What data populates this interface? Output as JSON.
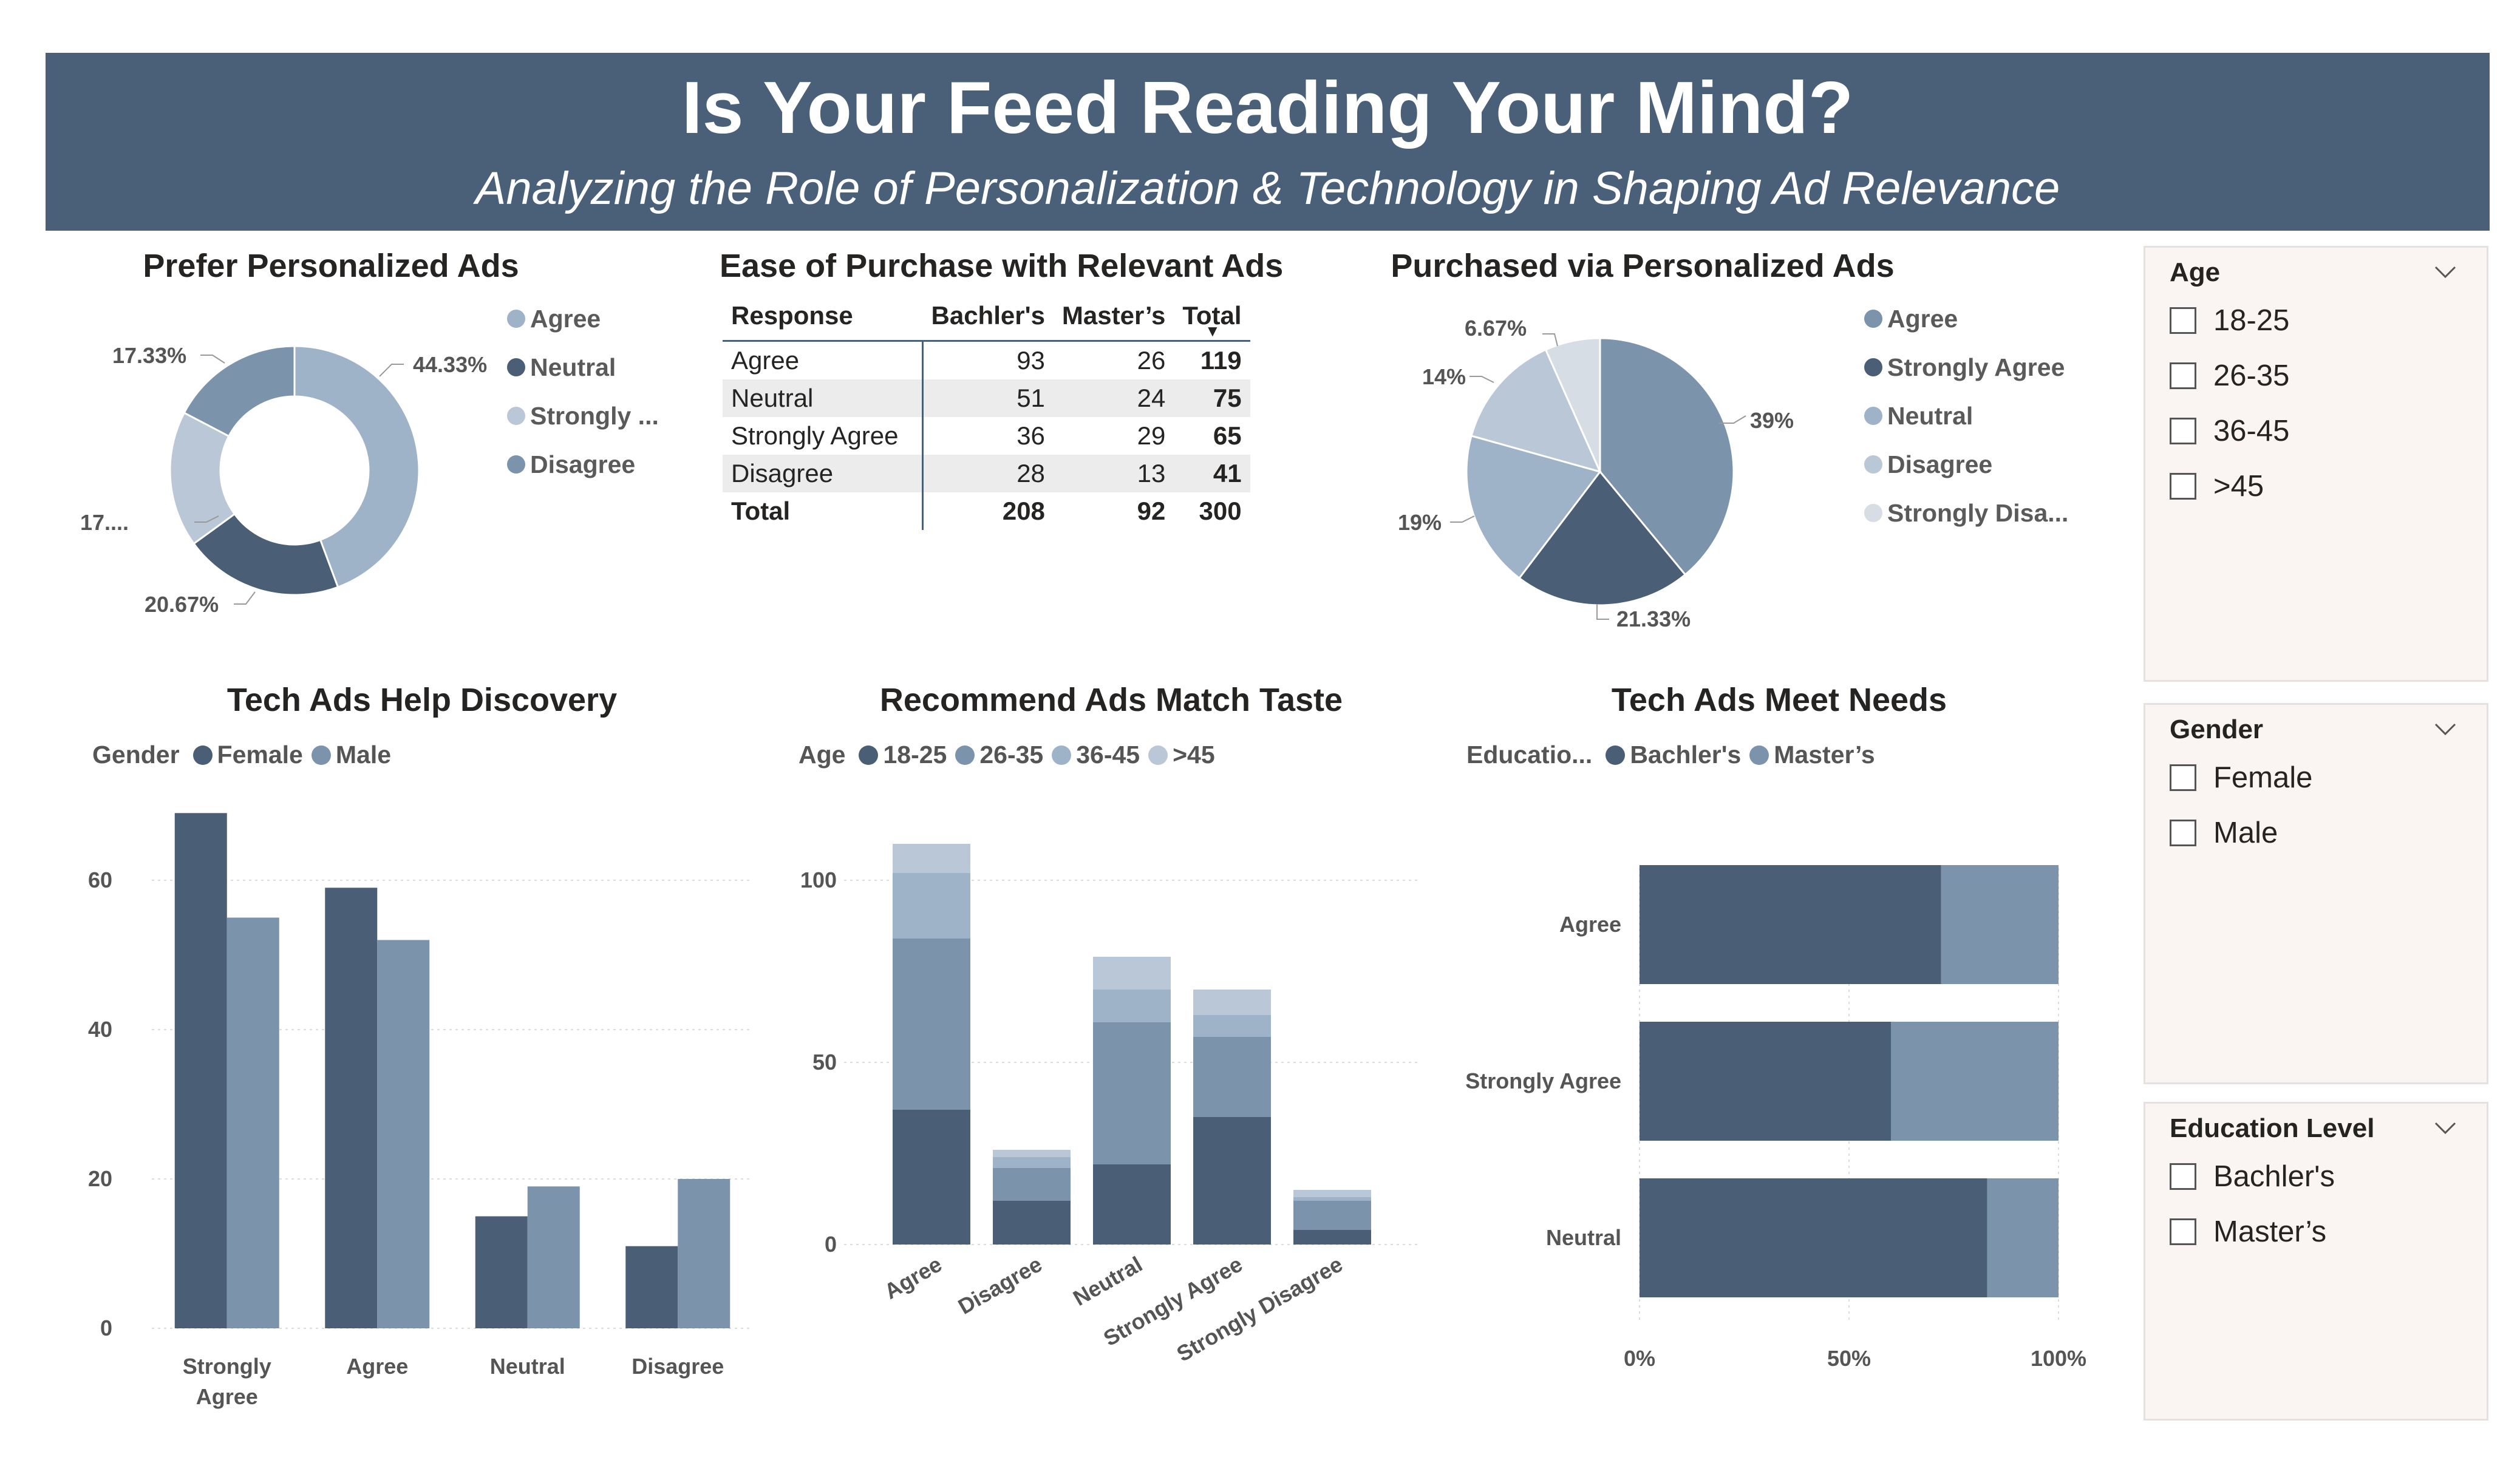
{
  "header": {
    "title": "Is Your Feed Reading Your Mind?",
    "subtitle": "Analyzing the Role of Personalization & Technology in Shaping Ad Relevance"
  },
  "colors": {
    "banner": "#4a6078",
    "dark": "#4a5f75",
    "mid": "#7b93ab",
    "light": "#9fb3c8",
    "lighter": "#bac7d7",
    "palest": "#d6dde5"
  },
  "prefer": {
    "title": "Prefer Personalized Ads",
    "legend": [
      "Agree",
      "Neutral",
      "Strongly ...",
      "Disagree"
    ],
    "labels": {
      "agree": "44.33%",
      "neutral": "20.67%",
      "strongly": "17....",
      "disagree": "17.33%"
    }
  },
  "ease": {
    "title": "Ease of Purchase with Relevant Ads",
    "columns": [
      "Response",
      "Bachler's",
      "Master’s",
      "Total"
    ],
    "rows": [
      [
        "Agree",
        "93",
        "26",
        "119"
      ],
      [
        "Neutral",
        "51",
        "24",
        "75"
      ],
      [
        "Strongly Agree",
        "36",
        "29",
        "65"
      ],
      [
        "Disagree",
        "28",
        "13",
        "41"
      ]
    ],
    "total": [
      "Total",
      "208",
      "92",
      "300"
    ]
  },
  "purchased": {
    "title": "Purchased via Personalized Ads",
    "legend": [
      "Agree",
      "Strongly Agree",
      "Neutral",
      "Disagree",
      "Strongly Disa..."
    ],
    "labels": {
      "agree": "39%",
      "strongly_agree": "21.33%",
      "neutral": "19%",
      "disagree": "14%",
      "strongly_disagree": "6.67%"
    }
  },
  "discovery": {
    "title": "Tech Ads Help Discovery",
    "legend_title": "Gender",
    "series_names": [
      "Female",
      "Male"
    ]
  },
  "taste": {
    "title": "Recommend Ads Match Taste",
    "legend_title": "Age",
    "series_names": [
      "18-25",
      "26-35",
      "36-45",
      ">45"
    ]
  },
  "needs": {
    "title": "Tech Ads Meet Needs",
    "legend_title": "Educatio...",
    "series_names": [
      "Bachler's",
      "Master’s"
    ]
  },
  "chart_data": [
    {
      "id": "prefer",
      "type": "pie",
      "variant": "donut",
      "title": "Prefer Personalized Ads",
      "categories": [
        "Agree",
        "Neutral",
        "Strongly Agree",
        "Disagree"
      ],
      "values": [
        44.33,
        20.67,
        17.67,
        17.33
      ]
    },
    {
      "id": "ease",
      "type": "table",
      "title": "Ease of Purchase with Relevant Ads"
    },
    {
      "id": "purchased",
      "type": "pie",
      "title": "Purchased via Personalized Ads",
      "categories": [
        "Agree",
        "Strongly Agree",
        "Neutral",
        "Disagree",
        "Strongly Disagree"
      ],
      "values": [
        39,
        21.33,
        19,
        14,
        6.67
      ]
    },
    {
      "id": "discovery",
      "type": "bar",
      "title": "Tech Ads Help Discovery",
      "categories": [
        "Strongly Agree",
        "Agree",
        "Neutral",
        "Disagree"
      ],
      "series": [
        {
          "name": "Female",
          "values": [
            69,
            59,
            15,
            11
          ]
        },
        {
          "name": "Male",
          "values": [
            55,
            52,
            19,
            20
          ]
        }
      ],
      "ylim": [
        0,
        70
      ],
      "yticks": [
        0,
        20,
        40,
        60
      ],
      "grid": true,
      "legend": "top-left"
    },
    {
      "id": "taste",
      "type": "bar",
      "stacked": true,
      "title": "Recommend Ads Match Taste",
      "categories": [
        "Agree",
        "Disagree",
        "Neutral",
        "Strongly Agree",
        "Strongly Disagree"
      ],
      "series": [
        {
          "name": "18-25",
          "values": [
            37,
            12,
            22,
            35,
            4
          ]
        },
        {
          "name": "26-35",
          "values": [
            47,
            9,
            39,
            22,
            8
          ]
        },
        {
          "name": "36-45",
          "values": [
            18,
            3,
            9,
            6,
            1
          ]
        },
        {
          "name": ">45",
          "values": [
            8,
            2,
            9,
            7,
            2
          ]
        }
      ],
      "ylim": [
        0,
        115
      ],
      "yticks": [
        0,
        50,
        100
      ],
      "grid": true,
      "legend": "top-left"
    },
    {
      "id": "needs",
      "type": "bar",
      "orientation": "horizontal",
      "stacked": true,
      "normalized": true,
      "title": "Tech Ads Meet Needs",
      "categories": [
        "Agree",
        "Strongly Agree",
        "Neutral"
      ],
      "series": [
        {
          "name": "Bachler's",
          "values": [
            72,
            60,
            83
          ]
        },
        {
          "name": "Master’s",
          "values": [
            28,
            40,
            17
          ]
        }
      ],
      "xticks": [
        "0%",
        "50%",
        "100%"
      ],
      "grid": true,
      "legend": "top-left"
    }
  ],
  "slicers": {
    "age": {
      "title": "Age",
      "items": [
        "18-25",
        "26-35",
        "36-45",
        ">45"
      ]
    },
    "gender": {
      "title": "Gender",
      "items": [
        "Female",
        "Male"
      ]
    },
    "education": {
      "title": "Education Level",
      "items": [
        "Bachler's",
        "Master’s"
      ]
    }
  }
}
